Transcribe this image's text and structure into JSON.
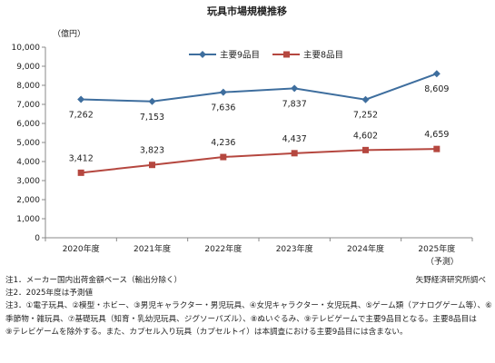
{
  "chart_data": {
    "type": "line",
    "title": "玩具市場規模推移",
    "ylabel": "（億円）",
    "categories": [
      "2020年度",
      "2021年度",
      "2022年度",
      "2023年度",
      "2024年度",
      "2025年度"
    ],
    "category_sub": [
      "",
      "",
      "",
      "",
      "",
      "（予測）"
    ],
    "ylim": [
      0,
      10000
    ],
    "yticks": [
      0,
      1000,
      2000,
      3000,
      4000,
      5000,
      6000,
      7000,
      8000,
      9000,
      10000
    ],
    "ytick_labels": [
      "0",
      "1,000",
      "2,000",
      "3,000",
      "4,000",
      "5,000",
      "6,000",
      "7,000",
      "8,000",
      "9,000",
      "10,000"
    ],
    "legend_position": "top-center",
    "grid": false,
    "series": [
      {
        "name": "主要9品目",
        "color": "#3E6E9E",
        "marker": "diamond",
        "values": [
          7262,
          7153,
          7636,
          7837,
          7252,
          8609
        ],
        "labels": [
          "7,262",
          "7,153",
          "7,636",
          "7,837",
          "7,252",
          "8,609"
        ]
      },
      {
        "name": "主要8品目",
        "color": "#B5473F",
        "marker": "square",
        "values": [
          3412,
          3823,
          4236,
          4437,
          4602,
          4659
        ],
        "labels": [
          "3,412",
          "3,823",
          "4,236",
          "4,437",
          "4,602",
          "4,659"
        ]
      }
    ]
  },
  "notes": [
    "注1．メーカー国内出荷金額ベース（輸出分除く）",
    "注2．2025年度は予測値",
    "注3．①電子玩具、②模型・ホビー、③男児キャラクター・男児玩具、④女児キャラクター・女児玩具、⑤ゲーム類（アナログゲーム等）、⑥",
    "季節物・雑玩具、⑦基礎玩具（知育・乳幼児玩具、ジグソーパズル）、⑧ぬいぐるみ、⑨テレビゲームで主要9品目となる。主要8品目は",
    "⑨テレビゲームを除外する。また、カプセル入り玩具（カプセルトイ）は本調査における主要9品目には含まない。"
  ],
  "source": "矢野経済研究所調べ"
}
